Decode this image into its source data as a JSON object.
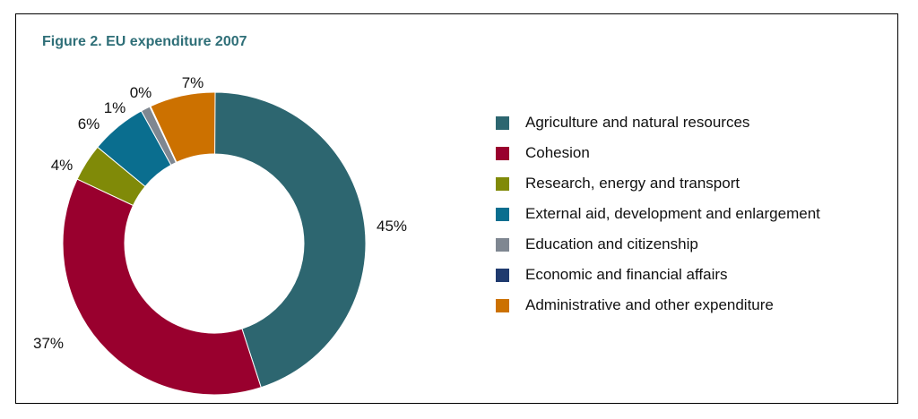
{
  "chart_data": {
    "type": "pie",
    "title": "Figure 2. EU expenditure 2007",
    "donut": true,
    "legend_position": "right",
    "categories": [
      "Agriculture and natural resources",
      "Cohesion",
      "Research, energy and transport",
      "External aid, development and enlargement",
      "Education and citizenship",
      "Economic and financial affairs",
      "Administrative and other expenditure"
    ],
    "values": [
      45,
      37,
      4,
      6,
      1,
      0,
      7
    ],
    "labels": [
      "45%",
      "37%",
      "4%",
      "6%",
      "1%",
      "0%",
      "7%"
    ],
    "colors": [
      "#2d6670",
      "#99002e",
      "#808a08",
      "#0a6e8f",
      "#7f8791",
      "#1f3a6e",
      "#cc7100"
    ]
  }
}
